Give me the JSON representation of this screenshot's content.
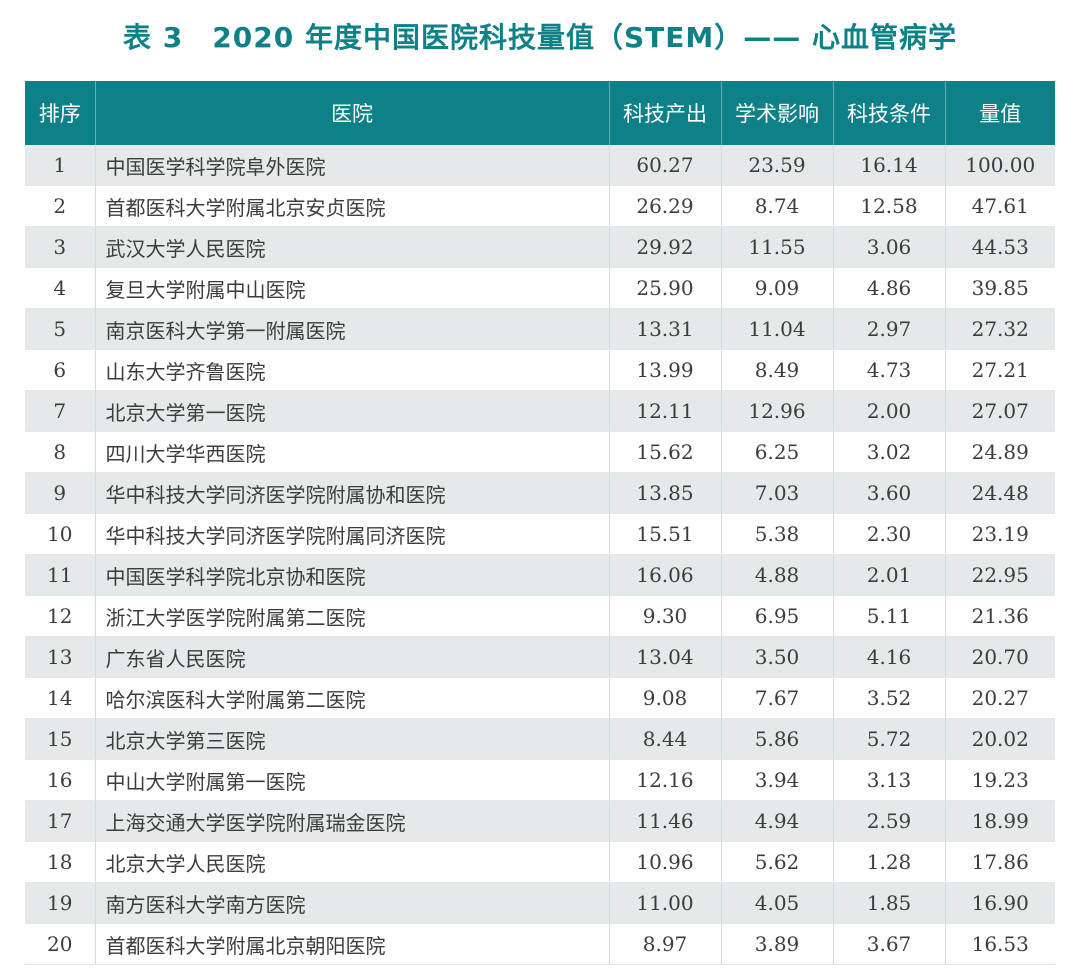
{
  "title": "表 3　2020 年度中国医院科技量值（STEM）—— 心血管病学",
  "table": {
    "headers": [
      "排序",
      "医院",
      "科技产出",
      "学术影响",
      "科技条件",
      "量值"
    ],
    "rows": [
      {
        "rank": "1",
        "hospital": "中国医学科学院阜外医院",
        "output": "60.27",
        "impact": "23.59",
        "condition": "16.14",
        "value": "100.00"
      },
      {
        "rank": "2",
        "hospital": "首都医科大学附属北京安贞医院",
        "output": "26.29",
        "impact": "8.74",
        "condition": "12.58",
        "value": "47.61"
      },
      {
        "rank": "3",
        "hospital": "武汉大学人民医院",
        "output": "29.92",
        "impact": "11.55",
        "condition": "3.06",
        "value": "44.53"
      },
      {
        "rank": "4",
        "hospital": "复旦大学附属中山医院",
        "output": "25.90",
        "impact": "9.09",
        "condition": "4.86",
        "value": "39.85"
      },
      {
        "rank": "5",
        "hospital": "南京医科大学第一附属医院",
        "output": "13.31",
        "impact": "11.04",
        "condition": "2.97",
        "value": "27.32"
      },
      {
        "rank": "6",
        "hospital": "山东大学齐鲁医院",
        "output": "13.99",
        "impact": "8.49",
        "condition": "4.73",
        "value": "27.21"
      },
      {
        "rank": "7",
        "hospital": "北京大学第一医院",
        "output": "12.11",
        "impact": "12.96",
        "condition": "2.00",
        "value": "27.07"
      },
      {
        "rank": "8",
        "hospital": "四川大学华西医院",
        "output": "15.62",
        "impact": "6.25",
        "condition": "3.02",
        "value": "24.89"
      },
      {
        "rank": "9",
        "hospital": "华中科技大学同济医学院附属协和医院",
        "output": "13.85",
        "impact": "7.03",
        "condition": "3.60",
        "value": "24.48"
      },
      {
        "rank": "10",
        "hospital": "华中科技大学同济医学院附属同济医院",
        "output": "15.51",
        "impact": "5.38",
        "condition": "2.30",
        "value": "23.19"
      },
      {
        "rank": "11",
        "hospital": "中国医学科学院北京协和医院",
        "output": "16.06",
        "impact": "4.88",
        "condition": "2.01",
        "value": "22.95"
      },
      {
        "rank": "12",
        "hospital": "浙江大学医学院附属第二医院",
        "output": "9.30",
        "impact": "6.95",
        "condition": "5.11",
        "value": "21.36"
      },
      {
        "rank": "13",
        "hospital": "广东省人民医院",
        "output": "13.04",
        "impact": "3.50",
        "condition": "4.16",
        "value": "20.70"
      },
      {
        "rank": "14",
        "hospital": "哈尔滨医科大学附属第二医院",
        "output": "9.08",
        "impact": "7.67",
        "condition": "3.52",
        "value": "20.27"
      },
      {
        "rank": "15",
        "hospital": "北京大学第三医院",
        "output": "8.44",
        "impact": "5.86",
        "condition": "5.72",
        "value": "20.02"
      },
      {
        "rank": "16",
        "hospital": "中山大学附属第一医院",
        "output": "12.16",
        "impact": "3.94",
        "condition": "3.13",
        "value": "19.23"
      },
      {
        "rank": "17",
        "hospital": "上海交通大学医学院附属瑞金医院",
        "output": "11.46",
        "impact": "4.94",
        "condition": "2.59",
        "value": "18.99"
      },
      {
        "rank": "18",
        "hospital": "北京大学人民医院",
        "output": "10.96",
        "impact": "5.62",
        "condition": "1.28",
        "value": "17.86"
      },
      {
        "rank": "19",
        "hospital": "南方医科大学南方医院",
        "output": "11.00",
        "impact": "4.05",
        "condition": "1.85",
        "value": "16.90"
      },
      {
        "rank": "20",
        "hospital": "首都医科大学附属北京朝阳医院",
        "output": "8.97",
        "impact": "3.89",
        "condition": "3.67",
        "value": "16.53"
      }
    ]
  },
  "colors": {
    "header_bg": "#0e8088",
    "header_text": "#ffffff",
    "title_text": "#0e8088",
    "row_stripe": "#e6e9e9",
    "body_text": "#3c3c3c"
  }
}
